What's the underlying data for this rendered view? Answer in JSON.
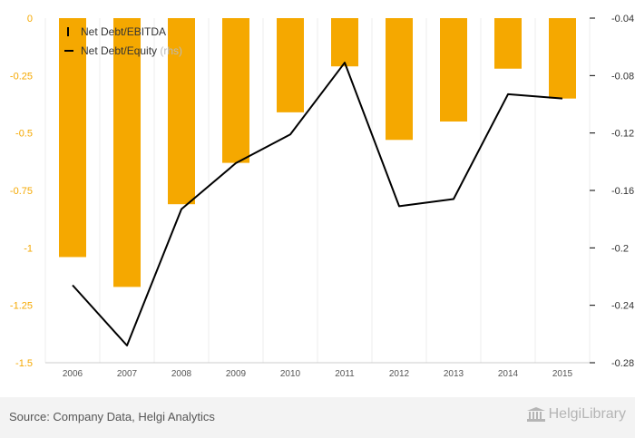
{
  "chart_data": {
    "type": "bar",
    "categories": [
      "2006",
      "2007",
      "2008",
      "2009",
      "2010",
      "2011",
      "2012",
      "2013",
      "2014",
      "2015"
    ],
    "series": [
      {
        "name": "Net Debt/EBITDA",
        "type": "bar",
        "axis": "left",
        "values": [
          -1.04,
          -1.17,
          -0.81,
          -0.63,
          -0.41,
          -0.21,
          -0.53,
          -0.45,
          -0.22,
          -0.35
        ]
      },
      {
        "name": "Net Debt/Equity",
        "name_suffix": "(rhs)",
        "type": "line",
        "axis": "right",
        "values": [
          -0.226,
          -0.268,
          -0.173,
          -0.141,
          -0.121,
          -0.071,
          -0.171,
          -0.166,
          -0.093,
          -0.096
        ]
      }
    ],
    "yleft": {
      "ylim": [
        -1.5,
        0
      ],
      "ticks": [
        "0",
        "-0.25",
        "-0.5",
        "-0.75",
        "-1",
        "-1.25",
        "-1.5"
      ]
    },
    "yright": {
      "ylim": [
        -0.28,
        -0.04
      ],
      "ticks": [
        "-0.04",
        "-0.08",
        "-0.12",
        "-0.16",
        "-0.2",
        "-0.24",
        "-0.28"
      ]
    },
    "legend_position": "top-left",
    "colors": {
      "bar": "#f5a800",
      "line": "#000000",
      "left_axis_text": "#f5a800"
    }
  },
  "footer": {
    "source": "Source: Company Data, Helgi Analytics",
    "logo_text": "HelgiLibrary",
    "logo_icon": "building-icon"
  }
}
